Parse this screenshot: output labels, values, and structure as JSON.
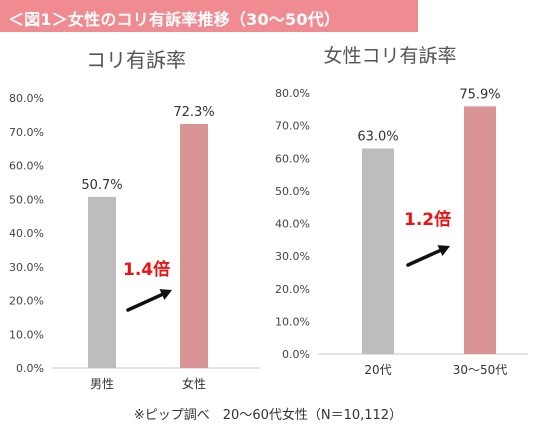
{
  "header": {
    "title": "＜図1＞女性のコリ有訴率推移（30～50代）"
  },
  "footnote": "※ピップ調べ　20～60代女性（N＝10,112）",
  "colors": {
    "banner": "#f08b92",
    "gray_bar": "#bdbdbd",
    "pink_bar": "#d99496",
    "highlight_text": "#ee1111",
    "arrow": "#111111"
  },
  "chart_data": [
    {
      "type": "bar",
      "title": "コリ有訴率",
      "categories": [
        "男性",
        "女性"
      ],
      "values": [
        50.7,
        72.3
      ],
      "value_labels": [
        "50.7%",
        "72.3%"
      ],
      "ylim": [
        0,
        80
      ],
      "yticks": [
        "0.0%",
        "10.0%",
        "20.0%",
        "30.0%",
        "40.0%",
        "50.0%",
        "60.0%",
        "70.0%",
        "80.0%"
      ],
      "grid": false,
      "annotation": "1.4倍"
    },
    {
      "type": "bar",
      "title": "女性コリ有訴率",
      "categories": [
        "20代",
        "30～50代"
      ],
      "values": [
        63.0,
        75.9
      ],
      "value_labels": [
        "63.0%",
        "75.9%"
      ],
      "ylim": [
        0,
        80
      ],
      "yticks": [
        "0.0%",
        "10.0%",
        "20.0%",
        "30.0%",
        "40.0%",
        "50.0%",
        "60.0%",
        "70.0%",
        "80.0%"
      ],
      "grid": false,
      "annotation": "1.2倍"
    }
  ]
}
